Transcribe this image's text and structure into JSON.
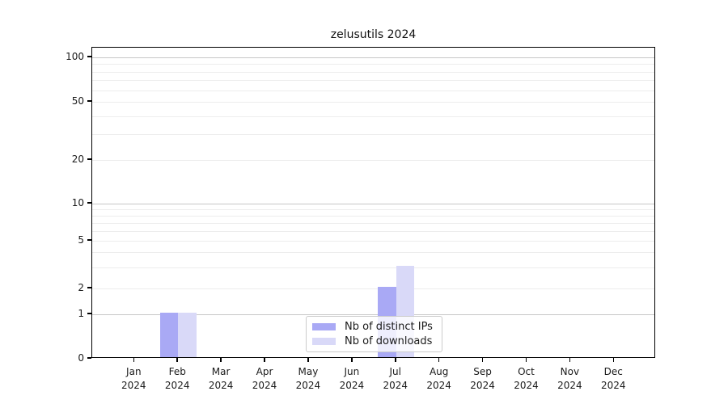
{
  "chart_data": {
    "type": "bar",
    "title": "zelusutils 2024",
    "x_months": [
      "Jan",
      "Feb",
      "Mar",
      "Apr",
      "May",
      "Jun",
      "Jul",
      "Aug",
      "Sep",
      "Oct",
      "Nov",
      "Dec"
    ],
    "x_year": "2024",
    "series": [
      {
        "name": "Nb of distinct IPs",
        "color": "#a9a9f5",
        "values": [
          0,
          1,
          0,
          0,
          0,
          0,
          2,
          0,
          0,
          0,
          0,
          0
        ]
      },
      {
        "name": "Nb of downloads",
        "color": "#d9d9f8",
        "values": [
          0,
          1,
          0,
          0,
          0,
          0,
          3,
          0,
          0,
          0,
          0,
          0
        ]
      }
    ],
    "y_ticks": [
      0,
      1,
      2,
      5,
      10,
      20,
      50,
      100
    ],
    "y_scale": "symlog",
    "ylim": [
      0,
      116
    ],
    "grid": {
      "horizontal": true,
      "major_color": "#c7c7c7",
      "minor_color": "#ededed"
    },
    "legend_position": "inside-bottom-center"
  }
}
